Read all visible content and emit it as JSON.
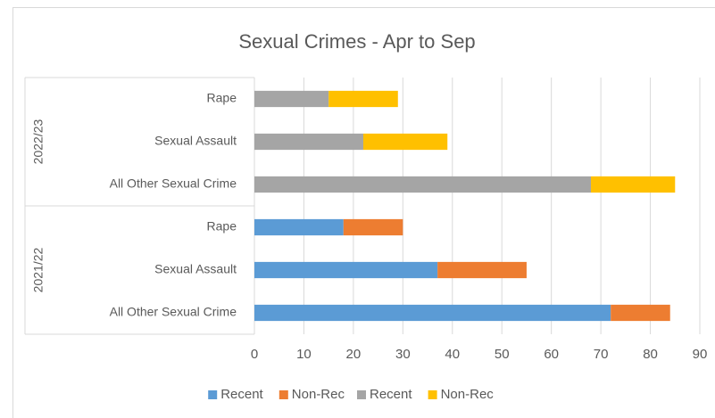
{
  "chart_data": {
    "type": "stacked_bar_horizontal",
    "title": "Sexual Crimes - Apr to Sep",
    "groups": [
      {
        "name": "2022/23",
        "categories": [
          "Rape",
          "Sexual Assault",
          "All Other Sexual Crime"
        ]
      },
      {
        "name": "2021/22",
        "categories": [
          "Rape",
          "Sexual Assault",
          "All Other Sexual Crime"
        ]
      }
    ],
    "series": [
      {
        "name": "Recent",
        "color": "#5b9bd5",
        "values": [
          null,
          null,
          null,
          18,
          37,
          72
        ]
      },
      {
        "name": "Non-Rec",
        "color": "#ed7d31",
        "values": [
          null,
          null,
          null,
          12,
          18,
          12
        ]
      },
      {
        "name": "Recent",
        "color": "#a5a5a5",
        "values": [
          15,
          22,
          68,
          null,
          null,
          null
        ]
      },
      {
        "name": "Non-Rec",
        "color": "#ffc000",
        "values": [
          14,
          17,
          17,
          null,
          null,
          null
        ]
      }
    ],
    "xlim": [
      0,
      90
    ],
    "xticks": [
      0,
      10,
      20,
      30,
      40,
      50,
      60,
      70,
      80,
      90
    ],
    "grid": true,
    "legend": "bottom"
  }
}
